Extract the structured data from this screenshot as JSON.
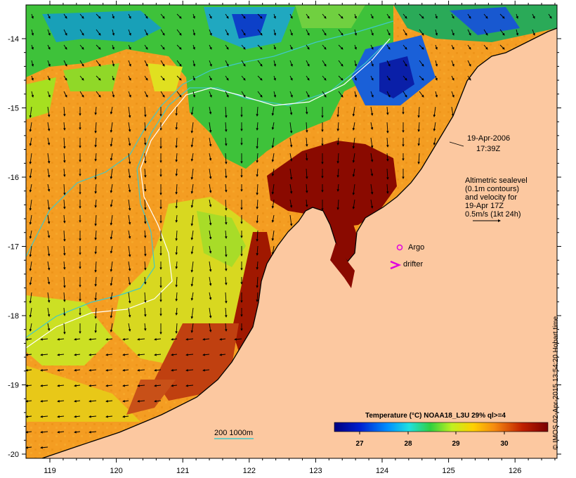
{
  "map": {
    "date_label": "19-Apr-2006",
    "time_label": "17:39Z",
    "sealevel_note": [
      "Altimetric sealevel",
      "(0.1m contours)",
      "and velocity for",
      "19-Apr 17Z",
      "0.5m/s (1kt 24h)"
    ],
    "legend_argo": "Argo",
    "legend_drifter": "drifter",
    "isobath_label": "200  1000m",
    "colorbar_title": "Temperature (°C) NOAA18_L3U 29% ql>=4",
    "colorbar_ticks": [
      "27",
      "28",
      "29",
      "30"
    ],
    "credit": "© IMOS 02-Apr-2015 13:54:20 Hobart time",
    "lon_ticks": [
      "119",
      "120",
      "121",
      "122",
      "123",
      "124",
      "125",
      "126"
    ],
    "lat_ticks": [
      "-14",
      "-15",
      "-16",
      "-17",
      "-18",
      "-19",
      "-20"
    ],
    "colors": {
      "land": "#fbc8a0",
      "ocean_warm": "#f39a1e",
      "hot": "#8b0a00",
      "cool_green": "#2bbf3a",
      "cool_blue": "#1060e0",
      "isobath_200": "#40c8c8",
      "isobath_1000": "#ffffff",
      "argo_marker": "#e000e0"
    }
  }
}
